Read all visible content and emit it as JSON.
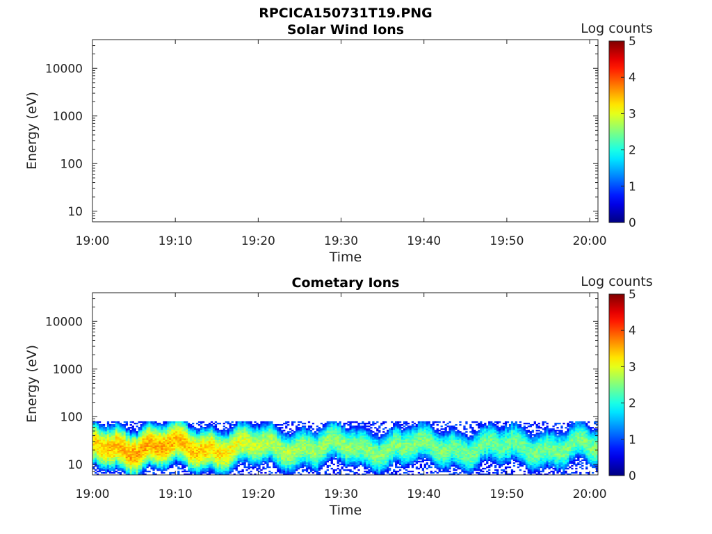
{
  "figure_title": "RPCICA150731T19.PNG",
  "chart_data": [
    {
      "type": "heatmap",
      "title": "Solar Wind Ions",
      "xlabel": "Time",
      "ylabel": "Energy (eV)",
      "x_range": [
        "19:00",
        "20:01"
      ],
      "x_ticks": [
        "19:00",
        "19:10",
        "19:20",
        "19:30",
        "19:40",
        "19:50",
        "20:00"
      ],
      "y_scale": "log",
      "y_range": [
        6,
        40000
      ],
      "y_ticks": [
        "10",
        "100",
        "1000",
        "10000"
      ],
      "colorbar": {
        "label": "Log counts",
        "range": [
          0,
          5
        ],
        "ticks": [
          "0",
          "1",
          "2",
          "3",
          "4",
          "5"
        ],
        "colormap": "jet"
      },
      "data": "empty"
    },
    {
      "type": "heatmap",
      "title": "Cometary Ions",
      "xlabel": "Time",
      "ylabel": "Energy (eV)",
      "x_range": [
        "19:00",
        "20:01"
      ],
      "x_ticks": [
        "19:00",
        "19:10",
        "19:20",
        "19:30",
        "19:40",
        "19:50",
        "20:00"
      ],
      "y_scale": "log",
      "y_range": [
        6,
        40000
      ],
      "y_ticks": [
        "10",
        "100",
        "1000",
        "10000"
      ],
      "colorbar": {
        "label": "Log counts",
        "range": [
          0,
          5
        ],
        "ticks": [
          "0",
          "1",
          "2",
          "3",
          "4",
          "5"
        ],
        "colormap": "jet"
      },
      "band": {
        "energy_range_eV": [
          6,
          80
        ],
        "peak_energy_eV": [
          15,
          35
        ],
        "peak_log_counts": [
          {
            "time": "19:00",
            "value": 3.3
          },
          {
            "time": "19:05",
            "value": 3.6
          },
          {
            "time": "19:10",
            "value": 3.5
          },
          {
            "time": "19:15",
            "value": 3.3
          },
          {
            "time": "19:20",
            "value": 2.8
          },
          {
            "time": "19:30",
            "value": 2.6
          },
          {
            "time": "19:40",
            "value": 2.5
          },
          {
            "time": "19:50",
            "value": 2.4
          },
          {
            "time": "20:00",
            "value": 2.5
          }
        ]
      }
    }
  ]
}
